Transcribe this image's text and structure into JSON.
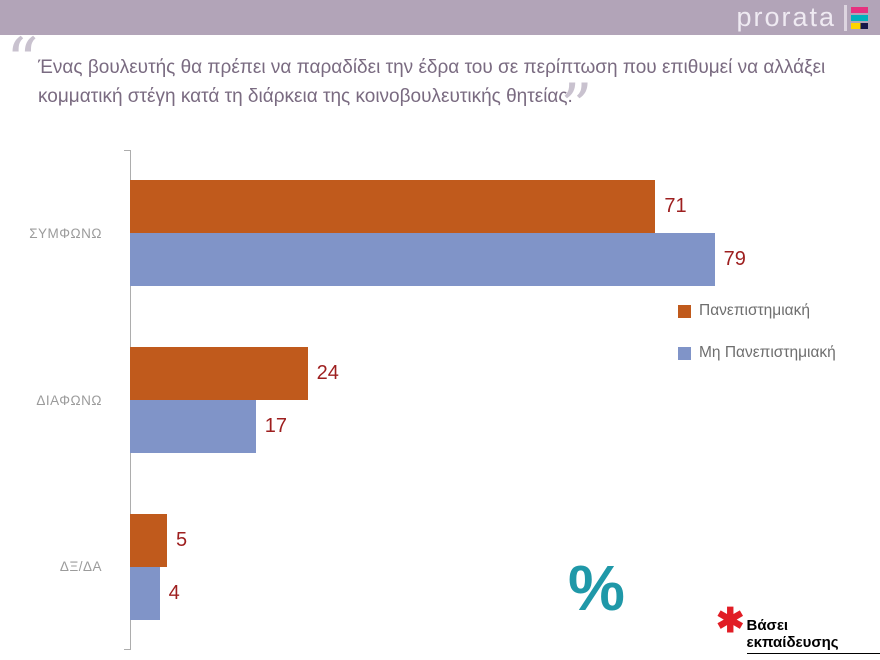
{
  "header": {
    "logo_text": "prorata"
  },
  "quote": {
    "open_mark": "“",
    "close_mark": "”",
    "line1": "Ένας βουλευτής θα πρέπει να παραδίδει την έδρα του σε περίπτωση που επιθυμεί να αλλάξει",
    "line2": "κομματική στέγη κατά τη διάρκεια της κοινοβουλευτικής θητείας."
  },
  "chart_data": {
    "type": "bar",
    "orientation": "horizontal",
    "title": "",
    "categories": [
      "ΣΥΜΦΩΝΩ",
      "ΔΙΑΦΩΝΩ",
      "ΔΞ/ΔΑ"
    ],
    "series": [
      {
        "name": "Πανεπιστημιακή",
        "color": "#c05a1c",
        "values": [
          71,
          24,
          5
        ]
      },
      {
        "name": "Μη Πανεπιστημιακή",
        "color": "#8094c8",
        "values": [
          79,
          17,
          4
        ]
      }
    ],
    "xlim": [
      0,
      100
    ],
    "value_labels": true,
    "value_label_color": "#9e1f1f",
    "legend_position": "right",
    "grid": false
  },
  "branding": {
    "percent_mark": "%"
  },
  "footnote": {
    "asterisk": "✱",
    "text": "Βάσει εκπαίδευσης"
  },
  "colors": {
    "header_bar": "#b2a4b8",
    "percent_mark": "#1f98a8",
    "footnote_asterisk": "#e11d25",
    "quote_text": "#7a6b81",
    "category_label": "#9b9b9b"
  }
}
